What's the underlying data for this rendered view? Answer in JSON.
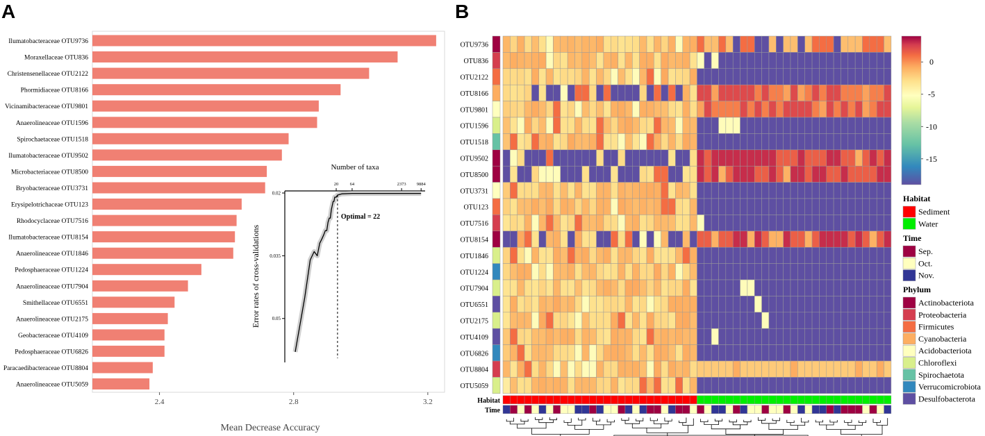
{
  "panel_a": {
    "label": "A",
    "xlabel": "Mean Decrease Accuracy",
    "chart_data": {
      "type": "bar",
      "orientation": "horizontal",
      "xlim": [
        2.2,
        3.25
      ],
      "ticks": [
        2.4,
        2.8,
        3.2
      ],
      "tick_labels": [
        "2.4",
        "2.8",
        "3.2"
      ],
      "bar_color": "#f08073",
      "categories": [
        "Ilumatobacteraceae OTU9736",
        "Moraxellaceae OTU836",
        "Christensenellaceae OTU2122",
        "Phormidiaceae OTU8166",
        "Vicinamibacteraceae OTU9801",
        "Anaerolineaceae OTU1596",
        "Spirochaetaceae OTU1518",
        "Ilumatobacteraceae OTU9502",
        "Microbacteriaceae OTU8500",
        "Bryobacteraceae OTU3731",
        "Erysipelotrichaceae OTU123",
        "Rhodocyclaceae OTU7516",
        "Ilumatobacteraceae OTU8154",
        "Anaerolineaceae OTU1846",
        "Pedosphaeraceae OTU1224",
        "Anaerolineaceae OTU7904",
        "Smithellaceae OTU6551",
        "Anaerolineaceae OTU2175",
        "Geobacteraceae OTU4109",
        "Pedosphaeraceae OTU6826",
        "Paracaedibacteraceae OTU8804",
        "Anaerolineaceae OTU5059"
      ],
      "values": [
        3.225,
        3.11,
        3.025,
        2.94,
        2.875,
        2.87,
        2.785,
        2.765,
        2.72,
        2.715,
        2.645,
        2.63,
        2.625,
        2.62,
        2.525,
        2.485,
        2.445,
        2.425,
        2.415,
        2.415,
        2.38,
        2.37
      ]
    }
  },
  "inset": {
    "title": "Number of taxa",
    "ylabel": "Error rates of cross-validations",
    "optimal_label": "Optimal = 22",
    "chart_data": {
      "type": "line",
      "x_tick_labels": [
        "20",
        "64",
        "2373",
        "9884"
      ],
      "y_tick_labels": [
        "0.02",
        "0.035",
        "0.05"
      ],
      "y_ticks": [
        0.02,
        0.035,
        0.05
      ],
      "ylim": [
        0.0195,
        0.0605
      ],
      "optimal_x": 22,
      "x": [
        1,
        2,
        3,
        4,
        5,
        6,
        7,
        8,
        9,
        10,
        11,
        12,
        13,
        14,
        15,
        16,
        17,
        18,
        19,
        20,
        22,
        30,
        64,
        2373,
        9884
      ],
      "y": [
        0.058,
        0.045,
        0.036,
        0.034,
        0.035,
        0.032,
        0.031,
        0.03,
        0.029,
        0.029,
        0.027,
        0.026,
        0.026,
        0.024,
        0.023,
        0.022,
        0.022,
        0.021,
        0.021,
        0.021,
        0.0205,
        0.0202,
        0.0201,
        0.0201,
        0.0201
      ]
    }
  },
  "panel_b": {
    "label": "B",
    "habitat_row_label": "Habitat",
    "time_row_label": "Time",
    "chart_data": {
      "type": "heatmap",
      "rows": [
        "OTU9736",
        "OTU836",
        "OTU2122",
        "OTU8166",
        "OTU9801",
        "OTU1596",
        "OTU1518",
        "OTU9502",
        "OTU8500",
        "OTU3731",
        "OTU123",
        "OTU7516",
        "OTU8154",
        "OTU1846",
        "OTU1224",
        "OTU7904",
        "OTU6551",
        "OTU2175",
        "OTU4109",
        "OTU6826",
        "OTU8804",
        "OTU5059"
      ],
      "n_columns": 54,
      "sediment_columns": 27,
      "color_scale": {
        "ticks": [
          0,
          -5,
          -10,
          -15
        ],
        "tick_labels": [
          "0",
          "-5",
          "-10",
          "-15"
        ],
        "range": [
          -19,
          4
        ]
      },
      "row_phylum": [
        "Actinobacteriota",
        "Proteobacteria",
        "Firmicutes",
        "Cyanobacteria",
        "Acidobacteriota",
        "Chloroflexi",
        "Spirochaetota",
        "Actinobacteriota",
        "Actinobacteriota",
        "Acidobacteriota",
        "Firmicutes",
        "Proteobacteria",
        "Actinobacteriota",
        "Chloroflexi",
        "Verrucomicrobiota",
        "Chloroflexi",
        "Desulfobacterota",
        "Chloroflexi",
        "Desulfobacterota",
        "Verrucomicrobiota",
        "Proteobacteria",
        "Chloroflexi"
      ],
      "time_sequence": [
        "Nov.",
        "Sep.",
        "Oct.",
        "Sep.",
        "Oct.",
        "Nov.",
        "Oct.",
        "Sep.",
        "Oct.",
        "Oct.",
        "Nov.",
        "Nov.",
        "Sep.",
        "Nov.",
        "Oct.",
        "Oct.",
        "Sep.",
        "Nov.",
        "Oct.",
        "Nov.",
        "Sep.",
        "Sep.",
        "Oct.",
        "Nov.",
        "Sep.",
        "Sep.",
        "Oct.",
        "Sep.",
        "Oct.",
        "Nov.",
        "Nov.",
        "Oct.",
        "Sep.",
        "Nov.",
        "Oct.",
        "Oct.",
        "Sep.",
        "Oct.",
        "Oct.",
        "Sep.",
        "Oct.",
        "Nov.",
        "Oct.",
        "Nov.",
        "Nov.",
        "Sep.",
        "Nov.",
        "Sep.",
        "Sep.",
        "Sep.",
        "Oct.",
        "Sep.",
        "Oct.",
        "Nov."
      ]
    }
  },
  "legend": {
    "colorbar_ticks": [
      "0",
      "-5",
      "-10",
      "-15"
    ],
    "habitat": {
      "title": "Habitat",
      "items": [
        {
          "label": "Sediment",
          "color": "#ff0000"
        },
        {
          "label": "Water",
          "color": "#00ee00"
        }
      ]
    },
    "time": {
      "title": "Time",
      "items": [
        {
          "label": "Sep.",
          "color": "#9e0142"
        },
        {
          "label": "Oct.",
          "color": "#ffffbf"
        },
        {
          "label": "Nov.",
          "color": "#313695"
        }
      ]
    },
    "phylum": {
      "title": "Phylum",
      "items": [
        {
          "label": "Actinobacteriota",
          "color": "#9e0142"
        },
        {
          "label": "Proteobacteria",
          "color": "#d53e4f"
        },
        {
          "label": "Firmicutes",
          "color": "#f46d43"
        },
        {
          "label": "Cyanobacteria",
          "color": "#fdae61"
        },
        {
          "label": "Acidobacteriota",
          "color": "#ffffbf"
        },
        {
          "label": "Chloroflexi",
          "color": "#d9ef8b"
        },
        {
          "label": "Spirochaetota",
          "color": "#66c2a5"
        },
        {
          "label": "Verrucomicrobiota",
          "color": "#3288bd"
        },
        {
          "label": "Desulfobacterota",
          "color": "#5e4fa2"
        }
      ]
    }
  }
}
